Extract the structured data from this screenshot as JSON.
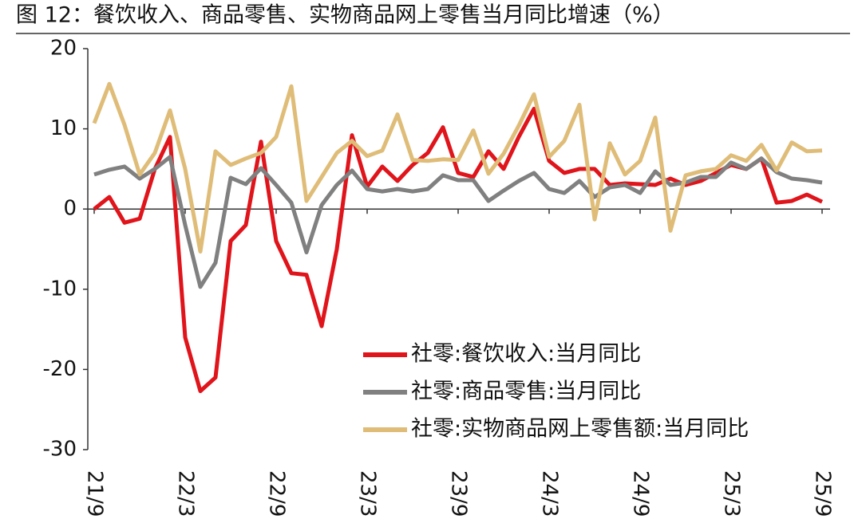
{
  "chart_data": {
    "type": "line",
    "title": "图 12：餐饮收入、商品零售、实物商品网上零售当月同比增速（%）",
    "categories": [
      "21/9",
      null,
      null,
      null,
      null,
      null,
      "22/3",
      null,
      null,
      null,
      null,
      null,
      "22/9",
      null,
      null,
      null,
      null,
      null,
      "23/3",
      null,
      null,
      null,
      null,
      null,
      "23/9",
      null,
      null,
      null,
      null,
      null,
      "24/3",
      null,
      null,
      null,
      null,
      null,
      "24/9",
      null,
      null,
      null,
      null,
      null,
      "25/3",
      null,
      null,
      null,
      null,
      null,
      "25/9"
    ],
    "series": [
      {
        "name": "社零:餐饮收入:当月同比",
        "color": "#e0141b",
        "values": [
          0,
          1.5,
          -1.7,
          -1.2,
          5,
          9,
          -16,
          -22.7,
          -21,
          -4,
          -2,
          8.4,
          -4,
          -8,
          -8.2,
          -14.6,
          -5,
          9.2,
          2.8,
          5.3,
          3.5,
          5.5,
          7,
          10.2,
          4.5,
          4,
          7.2,
          5,
          9,
          12.5,
          6,
          4.5,
          5,
          5,
          3,
          3.2,
          3.1,
          3,
          3.8,
          3,
          3.5,
          4.5,
          5.5,
          5,
          6.3,
          0.8,
          1,
          1.8,
          0.9
        ]
      },
      {
        "name": "社零:商品零售:当月同比",
        "color": "#808080",
        "values": [
          4.3,
          4.9,
          5.3,
          3.8,
          5,
          6.5,
          -2,
          -9.7,
          -6.7,
          3.9,
          3.1,
          5.1,
          3,
          0.8,
          -5.4,
          0.5,
          3,
          4.8,
          2.5,
          2.2,
          2.5,
          2.2,
          2.5,
          4.2,
          3.6,
          3.6,
          1,
          2.3,
          3.5,
          4.5,
          2.5,
          2,
          3.5,
          1.5,
          2.7,
          3,
          2,
          4.7,
          3,
          3.3,
          4,
          4,
          5.8,
          5,
          6.3,
          4.6,
          3.8,
          3.6,
          3.3
        ]
      },
      {
        "name": "社零:实物商品网上零售额:当月同比",
        "color": "#dfbd78",
        "values": [
          10.7,
          15.6,
          10.5,
          4.3,
          7,
          12.3,
          5,
          -5.3,
          7.2,
          5.5,
          6.3,
          7,
          9,
          15.3,
          1,
          4,
          7,
          8.5,
          6.6,
          7.3,
          11.8,
          6.1,
          6,
          6.2,
          6.1,
          9.8,
          4.4,
          6.9,
          10.4,
          14.3,
          6.5,
          8.5,
          13,
          -1.3,
          8.2,
          4.3,
          6,
          11.4,
          -2.7,
          4.2,
          4.7,
          5,
          6.7,
          6,
          8,
          4.8,
          8.3,
          7.2,
          7.3
        ]
      }
    ],
    "ylim": [
      -30,
      20
    ],
    "yticks": [
      20,
      10,
      0,
      -10,
      -20,
      -30
    ],
    "legend": "lower right"
  }
}
